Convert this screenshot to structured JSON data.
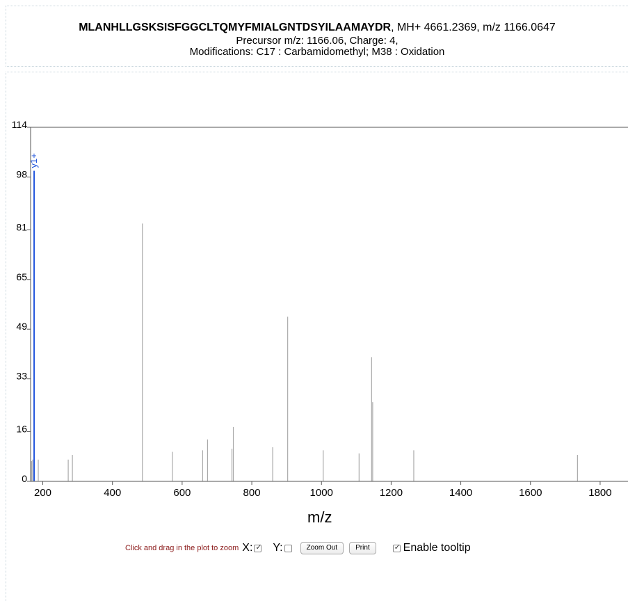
{
  "header": {
    "sequence": "MLANHLLGSKSISFGGCLTQMYFMIALGNTDSYILAAMAYDR",
    "mass_info": ", MH+ 4661.2369, m/z 1166.0647",
    "precursor": "Precursor m/z: 1166.06, Charge: 4,",
    "modifications": "Modifications: C17 : Carbamidomethyl; M38 : Oxidation"
  },
  "controls": {
    "hint": "Click and drag in the plot to zoom",
    "x_label": "X:",
    "x_checked": true,
    "y_label": "Y:",
    "y_checked": false,
    "zoom_out_label": "Zoom Out",
    "print_label": "Print",
    "tooltip_label": "Enable tooltip",
    "tooltip_checked": true
  },
  "chart_data": {
    "type": "bar",
    "xlabel": "m/z",
    "ylabel": "",
    "xlim": [
      165,
      1880
    ],
    "ylim": [
      0,
      114
    ],
    "x_ticks": [
      200,
      400,
      600,
      800,
      1000,
      1200,
      1400,
      1600,
      1800
    ],
    "y_ticks": [
      0,
      16,
      33,
      49,
      65,
      81,
      98,
      114
    ],
    "colors": {
      "peak": "#aaaaaa",
      "annotated": "#2255dd",
      "axis": "#555555"
    },
    "annotated_peaks": [
      {
        "label": "y1+",
        "mz": 175.1,
        "intensity": 100
      }
    ],
    "peaks": [
      {
        "mz": 168,
        "intensity": 6.5
      },
      {
        "mz": 171,
        "intensity": 7
      },
      {
        "mz": 187,
        "intensity": 7
      },
      {
        "mz": 273,
        "intensity": 7
      },
      {
        "mz": 285,
        "intensity": 8.5
      },
      {
        "mz": 486,
        "intensity": 83
      },
      {
        "mz": 572,
        "intensity": 9.5
      },
      {
        "mz": 659,
        "intensity": 10
      },
      {
        "mz": 673,
        "intensity": 13.5
      },
      {
        "mz": 743,
        "intensity": 10.5
      },
      {
        "mz": 747,
        "intensity": 17.5
      },
      {
        "mz": 860,
        "intensity": 11
      },
      {
        "mz": 903,
        "intensity": 53
      },
      {
        "mz": 1005,
        "intensity": 10
      },
      {
        "mz": 1108,
        "intensity": 9
      },
      {
        "mz": 1144,
        "intensity": 40
      },
      {
        "mz": 1147,
        "intensity": 25.5
      },
      {
        "mz": 1265,
        "intensity": 10
      },
      {
        "mz": 1735,
        "intensity": 8.5
      }
    ]
  }
}
